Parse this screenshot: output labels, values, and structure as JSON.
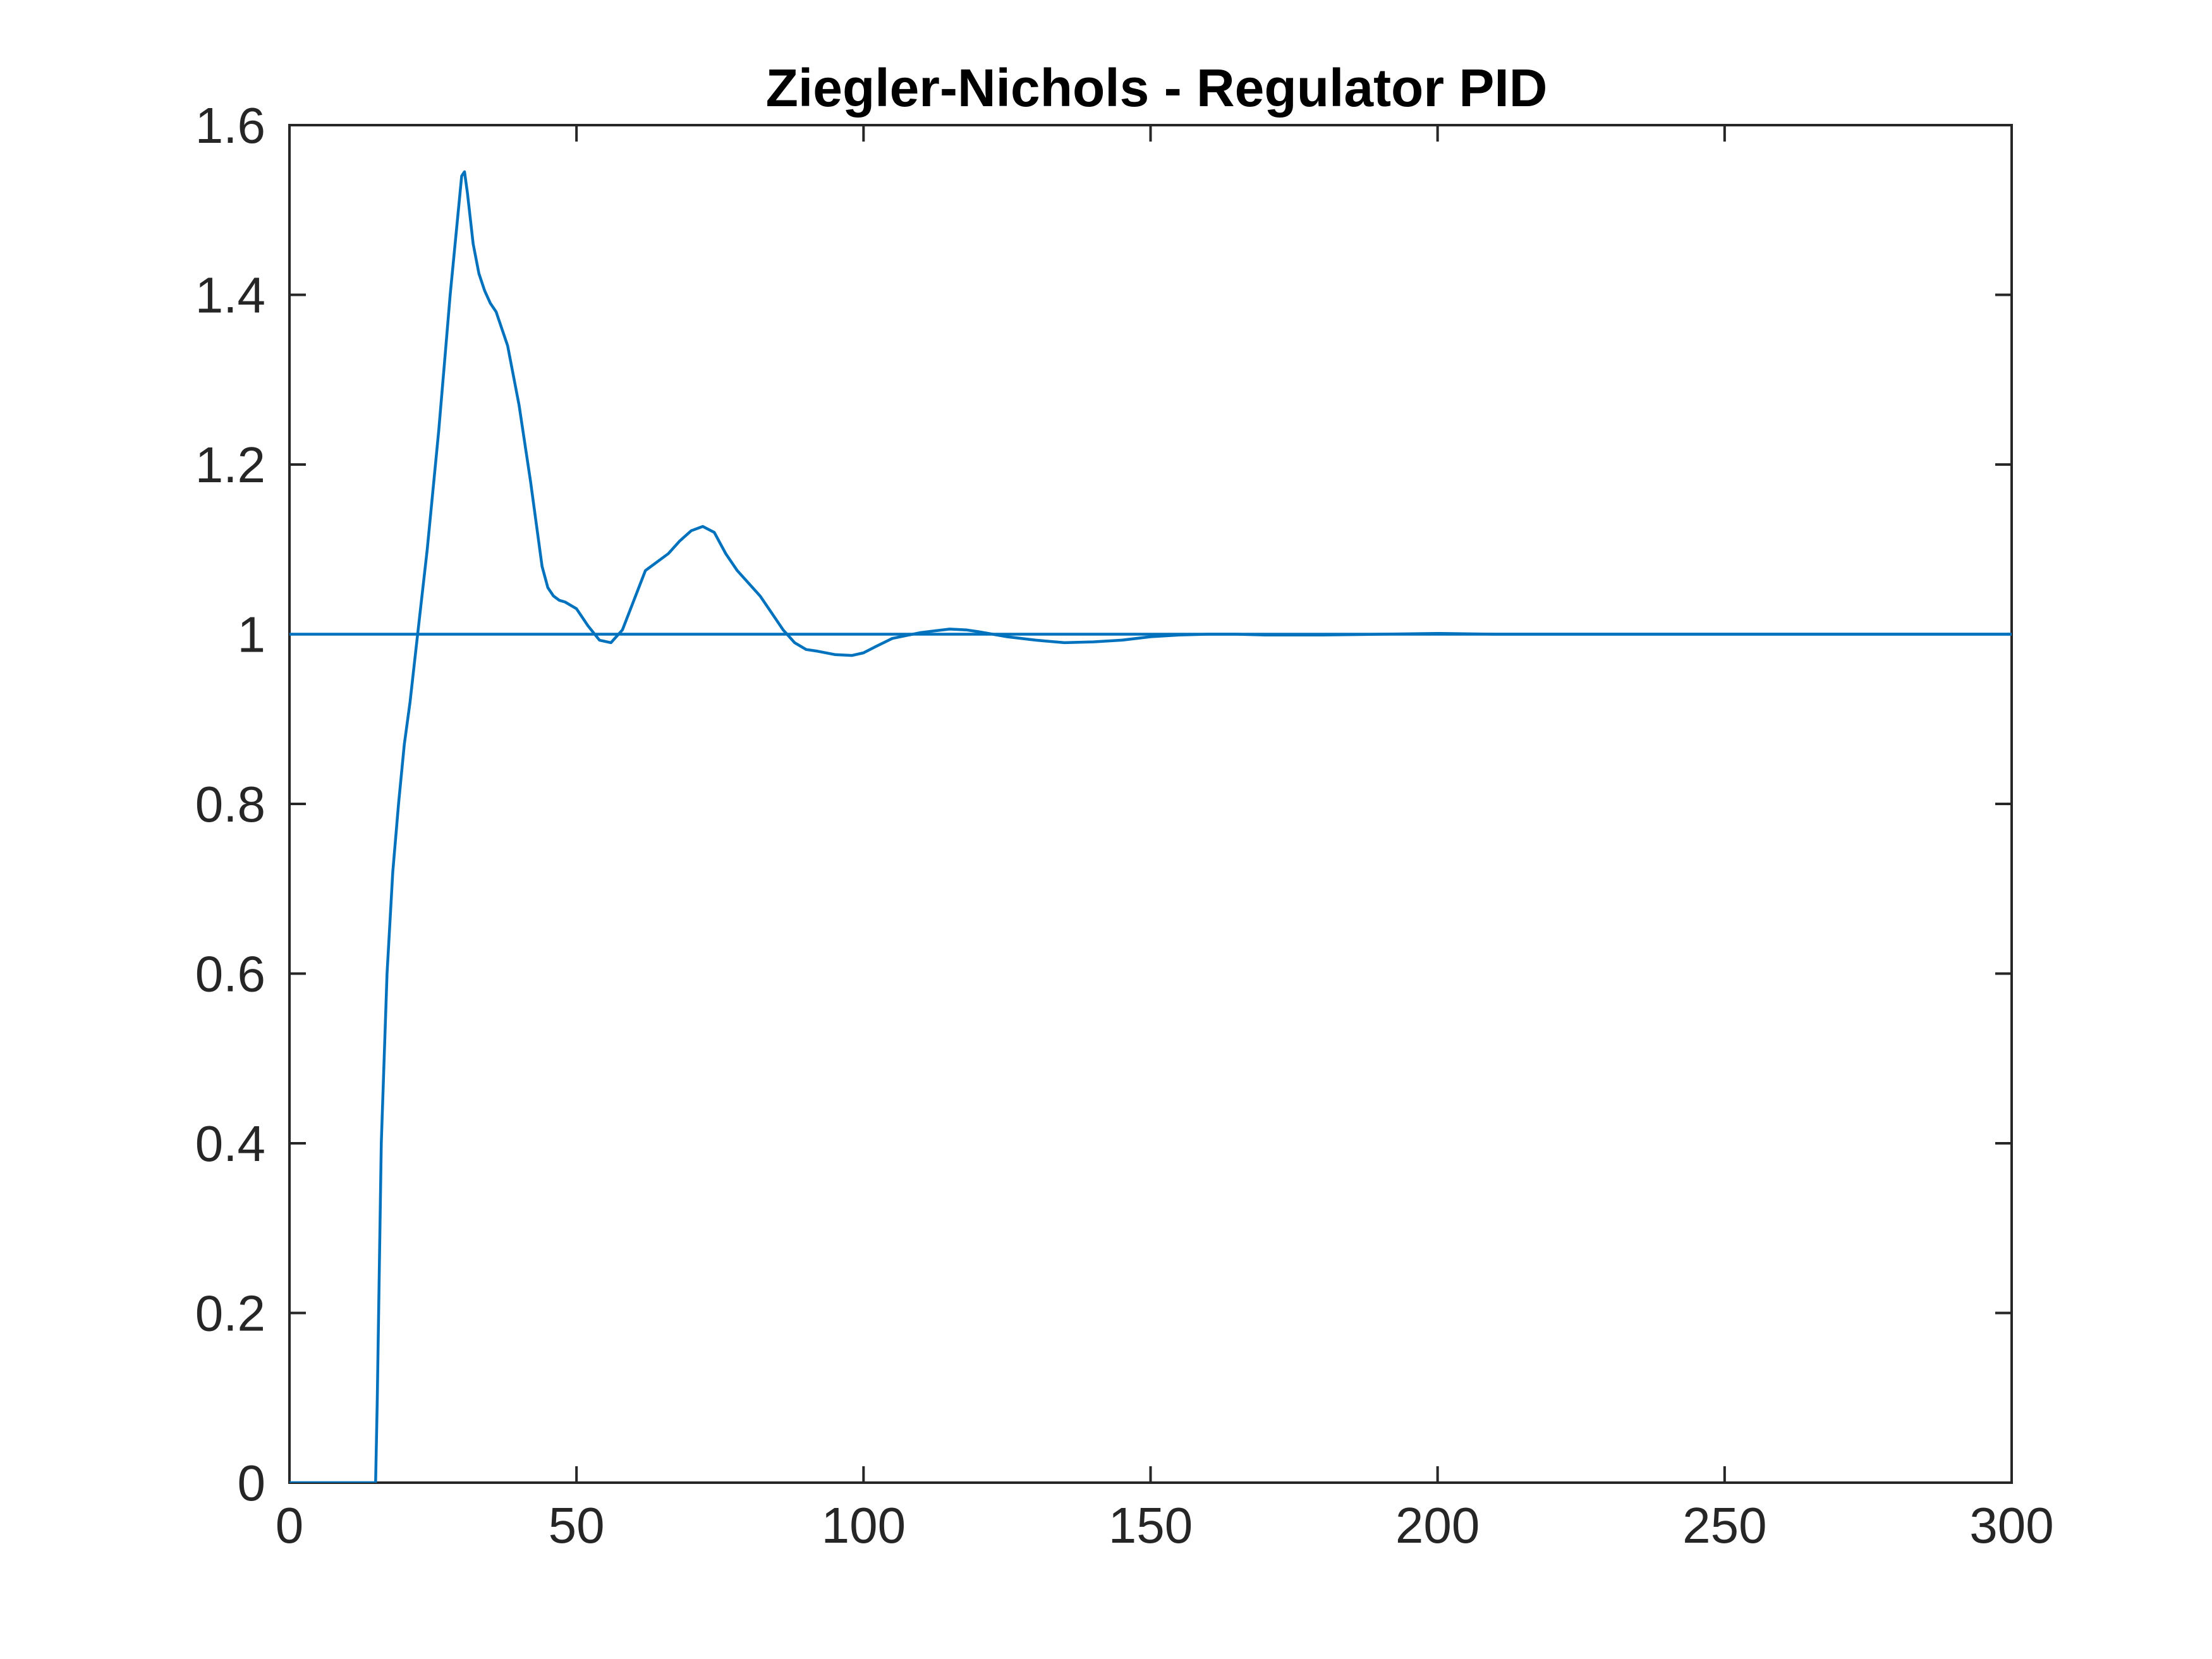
{
  "chart_data": {
    "type": "line",
    "title": "Ziegler-Nichols - Regulator PID",
    "xlabel": "",
    "ylabel": "",
    "xlim": [
      0,
      300
    ],
    "ylim": [
      0,
      1.6
    ],
    "xticks": [
      0,
      50,
      100,
      150,
      200,
      250,
      300
    ],
    "yticks": [
      0,
      0.2,
      0.4,
      0.6,
      0.8,
      1,
      1.2,
      1.4,
      1.6
    ],
    "xtick_labels": [
      "0",
      "50",
      "100",
      "150",
      "200",
      "250",
      "300"
    ],
    "ytick_labels": [
      "0",
      "0.2",
      "0.4",
      "0.6",
      "0.8",
      "1",
      "1.2",
      "1.4",
      "1.6"
    ],
    "grid": false,
    "line_color": "#0072BD",
    "series": [
      {
        "x": [
          0,
          15,
          15.3,
          16,
          17,
          18,
          19,
          20,
          21,
          22,
          23,
          24,
          25,
          26,
          27,
          28,
          29,
          30,
          30.5,
          31,
          32,
          33,
          34,
          35,
          36,
          38,
          40,
          42,
          44,
          45,
          46,
          47,
          48,
          50,
          52,
          54,
          56,
          58,
          60,
          62,
          64,
          66,
          68,
          70,
          72,
          74,
          76,
          78,
          80,
          82,
          84,
          86,
          88,
          90,
          92,
          95,
          98,
          100,
          102,
          105,
          110,
          115,
          118,
          120,
          125,
          130,
          135,
          140,
          145,
          150,
          155,
          160,
          165,
          170,
          175,
          180,
          190,
          200,
          210,
          220,
          240,
          260,
          280,
          300
        ],
        "y": [
          0,
          0,
          0.1,
          0.4,
          0.6,
          0.72,
          0.8,
          0.87,
          0.92,
          0.98,
          1.04,
          1.1,
          1.17,
          1.24,
          1.32,
          1.4,
          1.47,
          1.54,
          1.545,
          1.52,
          1.46,
          1.425,
          1.405,
          1.39,
          1.38,
          1.34,
          1.27,
          1.18,
          1.08,
          1.055,
          1.045,
          1.04,
          1.038,
          1.03,
          1.01,
          0.993,
          0.99,
          1.005,
          1.04,
          1.075,
          1.085,
          1.095,
          1.11,
          1.122,
          1.127,
          1.12,
          1.095,
          1.075,
          1.06,
          1.045,
          1.025,
          1.005,
          0.99,
          0.982,
          0.98,
          0.976,
          0.975,
          0.978,
          0.985,
          0.995,
          1.002,
          1.006,
          1.005,
          1.003,
          0.997,
          0.993,
          0.99,
          0.991,
          0.993,
          0.997,
          0.999,
          1.0,
          1.0,
          0.999,
          0.999,
          0.999,
          1.0,
          1.001,
          1.0,
          1.0,
          1.0,
          1.0,
          1.0,
          1.0
        ]
      },
      {
        "x": [
          0,
          300
        ],
        "y": [
          1,
          1
        ]
      }
    ]
  }
}
